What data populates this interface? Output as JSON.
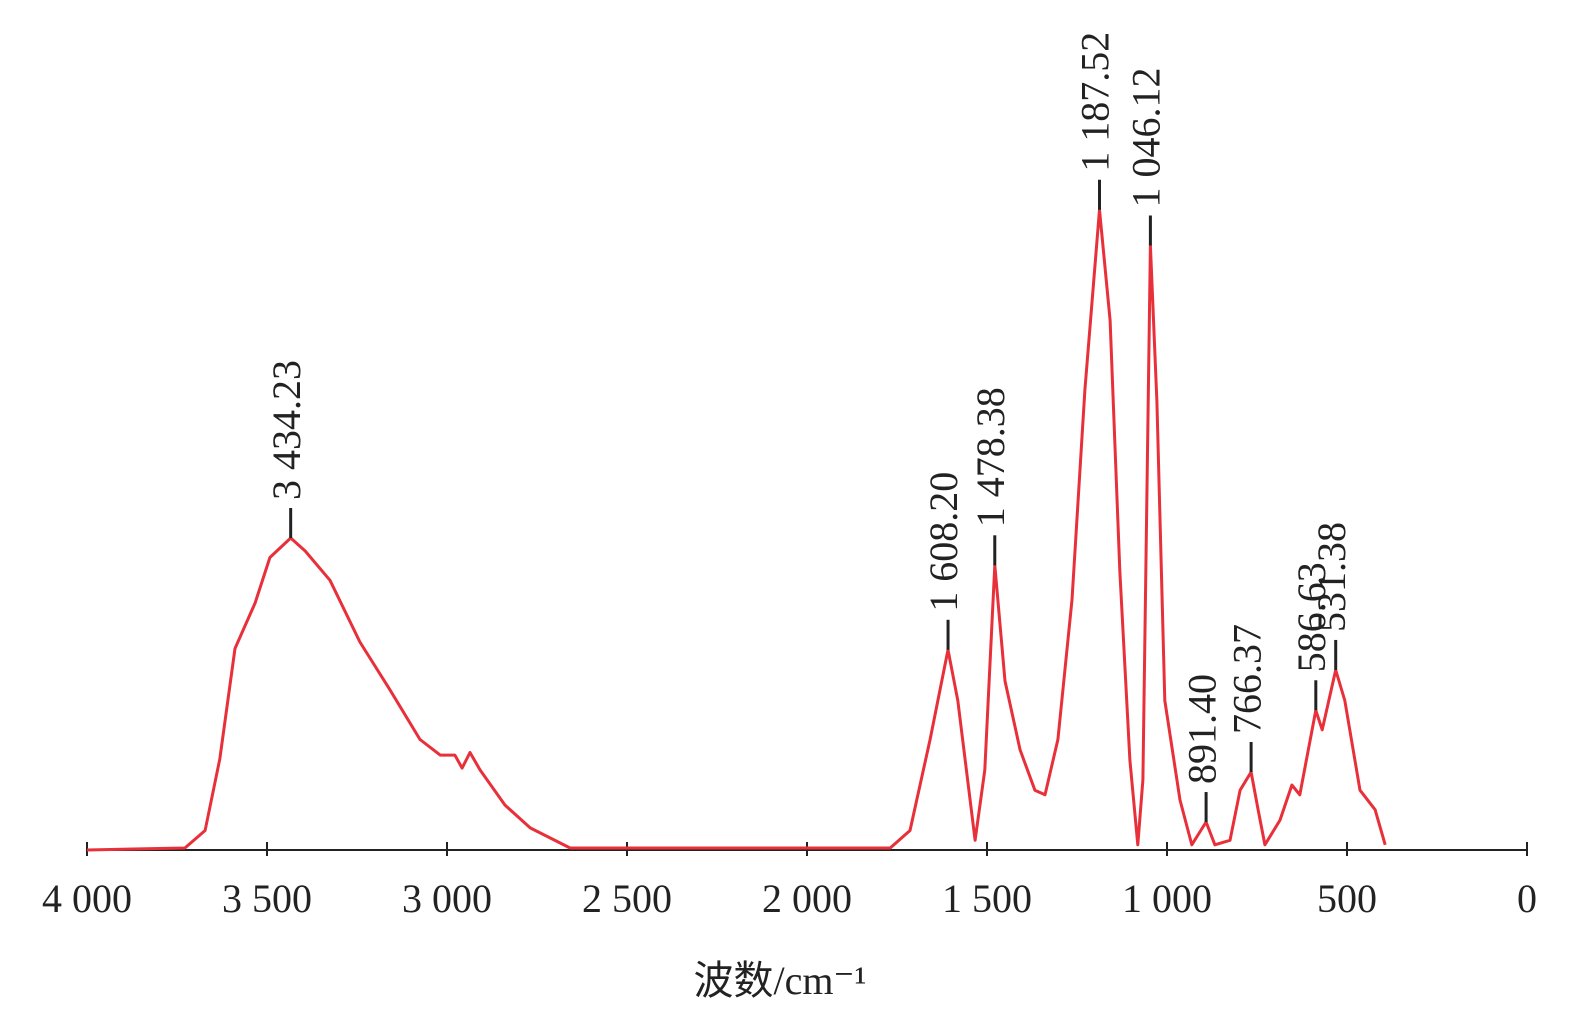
{
  "chart_data": {
    "type": "line",
    "xlabel": "波数/cm⁻¹",
    "xlim": [
      4000,
      0
    ],
    "ylim": [
      0,
      100
    ],
    "xticks": [
      {
        "value": 4000,
        "label": "4 000"
      },
      {
        "value": 3500,
        "label": "3 500"
      },
      {
        "value": 3000,
        "label": "3 000"
      },
      {
        "value": 2500,
        "label": "2 500"
      },
      {
        "value": 2000,
        "label": "2 000"
      },
      {
        "value": 1500,
        "label": "1 500"
      },
      {
        "value": 1000,
        "label": "1 000"
      },
      500,
      0
    ],
    "x": [
      4000,
      3728,
      3672,
      3631,
      3589,
      3533,
      3492,
      3434.23,
      3394,
      3325,
      3242,
      3158,
      3075,
      3019,
      2978,
      2958,
      2936,
      2908,
      2839,
      2769,
      2658,
      1769,
      1714,
      1658,
      1608.2,
      1581,
      1533,
      1506,
      1478.38,
      1450,
      1408,
      1367,
      1339,
      1303,
      1264,
      1228,
      1187.52,
      1158,
      1131,
      1103,
      1081,
      1067,
      1046.12,
      1028,
      1006,
      964,
      931,
      891.4,
      867,
      825,
      797,
      766.37,
      747,
      728,
      686,
      653,
      631,
      586.63,
      569,
      531.38,
      506,
      464,
      422,
      394
    ],
    "series": [
      {
        "color": "#e8303a",
        "values": [
          0,
          0.3,
          3,
          14,
          31,
          38,
          45,
          48,
          46,
          41.5,
          32,
          24.6,
          17,
          14.6,
          14.6,
          12.6,
          15,
          12.3,
          6.9,
          3.4,
          0.3,
          0.3,
          3,
          17,
          30.8,
          23,
          1.5,
          12.3,
          43.8,
          26,
          15.4,
          9.2,
          8.5,
          17,
          38.5,
          70.8,
          98.5,
          81.5,
          43,
          13.8,
          0.8,
          10.8,
          93,
          69,
          23,
          7.7,
          0.8,
          4.3,
          0.8,
          1.5,
          9.2,
          12,
          6.2,
          0.8,
          4.6,
          10,
          8.5,
          21.5,
          18.5,
          27.7,
          23,
          9.2,
          6.2,
          0.8
        ]
      }
    ],
    "peaks": [
      {
        "x": 3434.23,
        "y": 48,
        "label": "3 434.23"
      },
      {
        "x": 1608.2,
        "y": 30.8,
        "label": "1 608.20"
      },
      {
        "x": 1478.38,
        "y": 43.8,
        "label": "1 478.38"
      },
      {
        "x": 1187.52,
        "y": 98.5,
        "label": "1 187.52"
      },
      {
        "x": 1046.12,
        "y": 93,
        "label": "1 046.12"
      },
      {
        "x": 891.4,
        "y": 4.3,
        "label": "891.40"
      },
      {
        "x": 766.37,
        "y": 12,
        "label": "766.37"
      },
      {
        "x": 586.63,
        "y": 21.5,
        "label": "586.63"
      },
      {
        "x": 531.38,
        "y": 27.7,
        "label": "531.38"
      }
    ]
  }
}
